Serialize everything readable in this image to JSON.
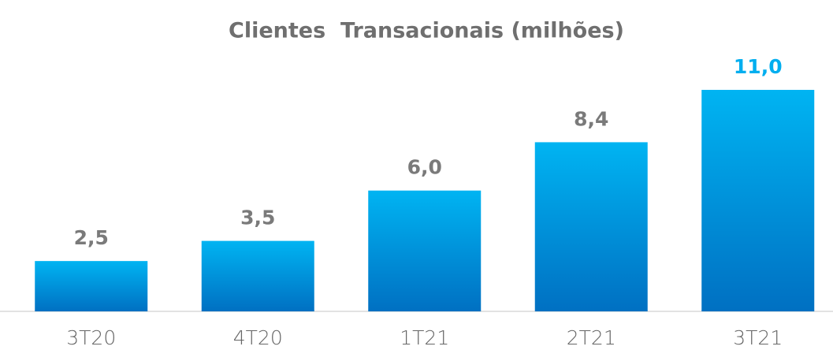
{
  "chart_data": {
    "type": "bar",
    "title": "Clientes  Transacionais (milhões)",
    "categories": [
      "3T20",
      "4T20",
      "1T21",
      "2T21",
      "3T21"
    ],
    "values": [
      2.5,
      3.5,
      6.0,
      8.4,
      11.0
    ],
    "value_labels": [
      "2,5",
      "3,5",
      "6,0",
      "8,4",
      "11,0"
    ],
    "color": [
      "#00b4f2",
      "#0070c2"
    ],
    "value_label_colors": [
      "#7a7a7a",
      "#7a7a7a",
      "#7a7a7a",
      "#7a7a7a",
      "#00aeef"
    ]
  }
}
